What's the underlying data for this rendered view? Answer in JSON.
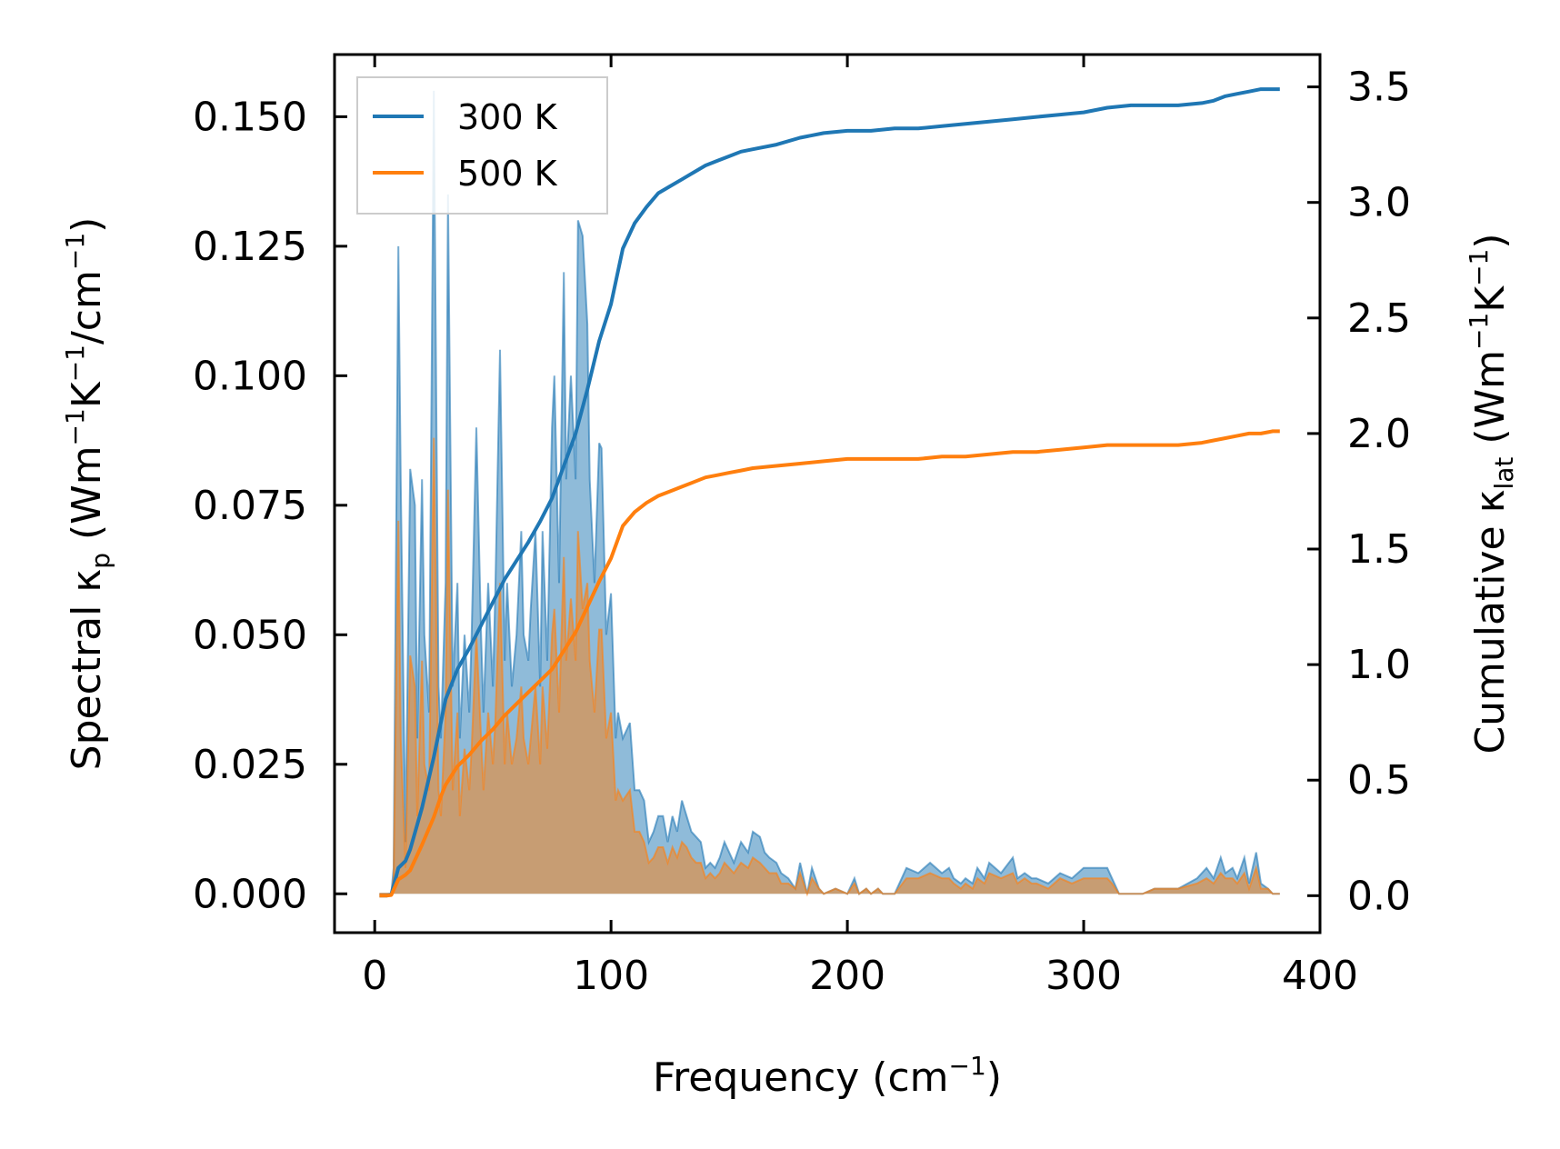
{
  "chart_data": {
    "type": "line",
    "title": "",
    "xlabel": {
      "main": "Frequency (cm",
      "sup": "−1",
      "tail": ")"
    },
    "ylabel_left": {
      "pre": "Spectral κ",
      "sub": "p",
      "mid": " (Wm",
      "sup1": "−1",
      "k": "K",
      "sup2": "−1",
      "tail1": "/cm",
      "sup3": "−1",
      "tail2": ")"
    },
    "ylabel_right": {
      "pre": "Cumulative κ",
      "sub": "lat",
      "mid": " (Wm",
      "sup1": "−1",
      "k": "K",
      "sup2": "−1",
      "tail": ")"
    },
    "xlim": [
      -17,
      400
    ],
    "ylim_left": [
      -0.0075,
      0.162
    ],
    "ylim_right": [
      -0.16,
      3.64
    ],
    "xticks": [
      0,
      100,
      200,
      300,
      400
    ],
    "xtick_labels": [
      "0",
      "100",
      "200",
      "300",
      "400"
    ],
    "yticks_left": [
      0.0,
      0.025,
      0.05,
      0.075,
      0.1,
      0.125,
      0.15
    ],
    "ytick_labels_left": [
      "0.000",
      "0.025",
      "0.050",
      "0.075",
      "0.100",
      "0.125",
      "0.150"
    ],
    "yticks_right": [
      0.0,
      0.5,
      1.0,
      1.5,
      2.0,
      2.5,
      3.0,
      3.5
    ],
    "ytick_labels_right": [
      "0.0",
      "0.5",
      "1.0",
      "1.5",
      "2.0",
      "2.5",
      "3.0",
      "3.5"
    ],
    "legend": {
      "position": "top-left",
      "entries": [
        "300 K",
        "500 K"
      ]
    },
    "colors": {
      "s300": "#1f77b4",
      "s500": "#ff7f0e"
    },
    "spectral": {
      "x": [
        2,
        5,
        7,
        8,
        10,
        11,
        13,
        15,
        17,
        18,
        20,
        21,
        23,
        25,
        27,
        28,
        30,
        31,
        33,
        35,
        36,
        38,
        40,
        41,
        43,
        45,
        46,
        48,
        50,
        51,
        53,
        55,
        56,
        58,
        60,
        62,
        63,
        65,
        66,
        68,
        70,
        71,
        73,
        75,
        76,
        78,
        80,
        81,
        83,
        85,
        86,
        88,
        90,
        91,
        93,
        95,
        96,
        98,
        100,
        102,
        103,
        105,
        108,
        110,
        112,
        114,
        116,
        118,
        120,
        122,
        124,
        126,
        128,
        130,
        132,
        134,
        136,
        138,
        140,
        142,
        144,
        146,
        148,
        150,
        152,
        155,
        158,
        160,
        163,
        165,
        167,
        170,
        172,
        175,
        178,
        180,
        183,
        185,
        188,
        190,
        195,
        200,
        203,
        205,
        208,
        210,
        213,
        215,
        218,
        220,
        225,
        230,
        235,
        240,
        243,
        245,
        248,
        250,
        253,
        255,
        258,
        260,
        265,
        270,
        272,
        275,
        278,
        280,
        285,
        290,
        295,
        300,
        305,
        310,
        312,
        315,
        320,
        325,
        330,
        340,
        348,
        352,
        355,
        358,
        360,
        363,
        365,
        368,
        370,
        373,
        375,
        378,
        380,
        383
      ],
      "y300": [
        0,
        0,
        0,
        0.005,
        0.125,
        0.08,
        0.01,
        0.082,
        0.075,
        0.03,
        0.08,
        0.05,
        0.035,
        0.155,
        0.04,
        0.03,
        0.06,
        0.135,
        0.04,
        0.06,
        0.03,
        0.05,
        0.035,
        0.05,
        0.09,
        0.05,
        0.035,
        0.06,
        0.04,
        0.058,
        0.105,
        0.045,
        0.06,
        0.04,
        0.05,
        0.07,
        0.05,
        0.045,
        0.055,
        0.07,
        0.04,
        0.07,
        0.045,
        0.09,
        0.1,
        0.06,
        0.12,
        0.08,
        0.1,
        0.08,
        0.13,
        0.127,
        0.11,
        0.08,
        0.06,
        0.087,
        0.086,
        0.05,
        0.058,
        0.03,
        0.035,
        0.03,
        0.033,
        0.02,
        0.02,
        0.018,
        0.01,
        0.012,
        0.015,
        0.015,
        0.01,
        0.015,
        0.012,
        0.018,
        0.015,
        0.012,
        0.011,
        0.01,
        0.005,
        0.006,
        0.005,
        0.007,
        0.01,
        0.008,
        0.006,
        0.01,
        0.008,
        0.012,
        0.011,
        0.008,
        0.007,
        0.006,
        0.004,
        0.003,
        0.001,
        0.006,
        0.0,
        0.005,
        0.001,
        0.0,
        0.001,
        0.0,
        0.003,
        0.0,
        0.001,
        0.0,
        0.001,
        0.0,
        0.0,
        0.0,
        0.005,
        0.004,
        0.006,
        0.004,
        0.005,
        0.003,
        0.002,
        0.003,
        0.002,
        0.005,
        0.003,
        0.006,
        0.004,
        0.007,
        0.003,
        0.004,
        0.003,
        0.003,
        0.002,
        0.004,
        0.003,
        0.005,
        0.005,
        0.005,
        0.003,
        0.0,
        0.0,
        0.0,
        0.001,
        0.001,
        0.003,
        0.005,
        0.003,
        0.007,
        0.004,
        0.005,
        0.003,
        0.007,
        0.002,
        0.008,
        0.002,
        0.001,
        0.0,
        0.0
      ],
      "y500": [
        0,
        0,
        0,
        0.003,
        0.072,
        0.03,
        0.005,
        0.046,
        0.04,
        0.015,
        0.045,
        0.025,
        0.02,
        0.088,
        0.02,
        0.015,
        0.035,
        0.078,
        0.02,
        0.035,
        0.015,
        0.028,
        0.02,
        0.028,
        0.05,
        0.03,
        0.02,
        0.035,
        0.025,
        0.033,
        0.06,
        0.025,
        0.035,
        0.025,
        0.03,
        0.04,
        0.03,
        0.025,
        0.03,
        0.04,
        0.025,
        0.04,
        0.028,
        0.05,
        0.055,
        0.035,
        0.065,
        0.045,
        0.057,
        0.045,
        0.07,
        0.055,
        0.06,
        0.045,
        0.035,
        0.051,
        0.051,
        0.03,
        0.035,
        0.018,
        0.02,
        0.018,
        0.02,
        0.012,
        0.012,
        0.01,
        0.006,
        0.007,
        0.009,
        0.009,
        0.006,
        0.009,
        0.007,
        0.01,
        0.009,
        0.007,
        0.006,
        0.006,
        0.003,
        0.004,
        0.003,
        0.004,
        0.006,
        0.005,
        0.004,
        0.006,
        0.005,
        0.007,
        0.006,
        0.005,
        0.004,
        0.004,
        0.002,
        0.002,
        0.001,
        0.004,
        0.0,
        0.003,
        0.001,
        0.0,
        0.001,
        0.0,
        0.002,
        0.0,
        0.001,
        0.0,
        0.001,
        0.0,
        0.0,
        0.0,
        0.003,
        0.003,
        0.004,
        0.003,
        0.003,
        0.002,
        0.001,
        0.002,
        0.001,
        0.003,
        0.002,
        0.004,
        0.003,
        0.004,
        0.002,
        0.003,
        0.002,
        0.002,
        0.001,
        0.003,
        0.002,
        0.003,
        0.003,
        0.003,
        0.002,
        0.0,
        0.0,
        0.0,
        0.001,
        0.001,
        0.002,
        0.003,
        0.002,
        0.004,
        0.003,
        0.003,
        0.002,
        0.004,
        0.001,
        0.005,
        0.001,
        0.001,
        0.0,
        0.0
      ]
    },
    "cumulative": {
      "x": [
        2,
        5,
        7,
        10,
        13,
        15,
        20,
        25,
        28,
        30,
        35,
        40,
        45,
        50,
        55,
        60,
        65,
        70,
        75,
        80,
        85,
        90,
        95,
        100,
        105,
        110,
        115,
        120,
        125,
        130,
        135,
        140,
        145,
        150,
        155,
        160,
        170,
        180,
        190,
        200,
        210,
        220,
        230,
        240,
        250,
        260,
        270,
        280,
        290,
        300,
        310,
        320,
        330,
        340,
        350,
        355,
        360,
        365,
        370,
        375,
        380,
        383
      ],
      "y300": [
        0,
        0,
        0.005,
        0.12,
        0.15,
        0.2,
        0.38,
        0.6,
        0.75,
        0.85,
        0.98,
        1.07,
        1.17,
        1.27,
        1.37,
        1.45,
        1.53,
        1.62,
        1.72,
        1.86,
        2.0,
        2.19,
        2.4,
        2.56,
        2.8,
        2.91,
        2.98,
        3.04,
        3.07,
        3.1,
        3.13,
        3.16,
        3.18,
        3.2,
        3.22,
        3.23,
        3.25,
        3.28,
        3.3,
        3.31,
        3.31,
        3.32,
        3.32,
        3.33,
        3.34,
        3.35,
        3.36,
        3.37,
        3.38,
        3.39,
        3.41,
        3.42,
        3.42,
        3.42,
        3.43,
        3.44,
        3.46,
        3.47,
        3.48,
        3.49,
        3.49,
        3.49
      ],
      "y500": [
        0,
        0,
        0.003,
        0.07,
        0.09,
        0.11,
        0.22,
        0.34,
        0.43,
        0.48,
        0.56,
        0.61,
        0.67,
        0.72,
        0.78,
        0.83,
        0.88,
        0.93,
        0.98,
        1.06,
        1.14,
        1.25,
        1.36,
        1.46,
        1.6,
        1.66,
        1.7,
        1.73,
        1.75,
        1.77,
        1.79,
        1.81,
        1.82,
        1.83,
        1.84,
        1.85,
        1.86,
        1.87,
        1.88,
        1.89,
        1.89,
        1.89,
        1.89,
        1.9,
        1.9,
        1.91,
        1.92,
        1.92,
        1.93,
        1.94,
        1.95,
        1.95,
        1.95,
        1.95,
        1.96,
        1.97,
        1.98,
        1.99,
        2.0,
        2.0,
        2.01,
        2.01
      ]
    }
  }
}
